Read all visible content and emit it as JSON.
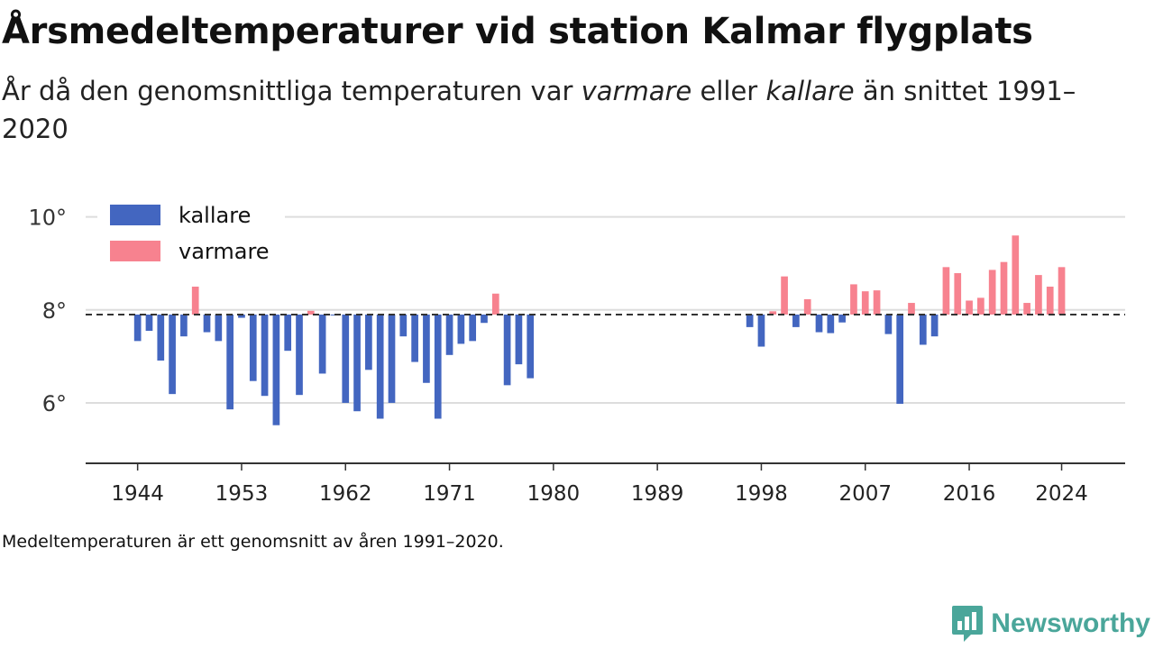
{
  "title": "Årsmedeltemperaturer vid station Kalmar flygplats",
  "subtitle": {
    "part1": "År då den genomsnittliga temperaturen var ",
    "emph1": "varmare",
    "part2": " eller ",
    "emph2": "kallare",
    "part3": " än snittet 1991–2020"
  },
  "footnote": "Medeltemperaturen är ett genomsnitt av åren 1991–2020.",
  "brand": {
    "name": "Newsworthy",
    "icon": "newsworthy-logo-icon",
    "color": "#4aa69a"
  },
  "colors": {
    "cold": "#4366c0",
    "warm": "#f7828f",
    "baseline": "#333333",
    "grid": "#dddddd",
    "axis": "#333333"
  },
  "chart_data": {
    "type": "bar",
    "title": "Årsmedeltemperaturer vid station Kalmar flygplats",
    "baseline": 7.9,
    "ylim": [
      4.7,
      10.4
    ],
    "yticks": [
      {
        "value": 6,
        "label": "6°"
      },
      {
        "value": 8,
        "label": "8°"
      },
      {
        "value": 10,
        "label": "10°"
      }
    ],
    "xlim": [
      1939.5,
      2029.5
    ],
    "xticks": [
      1944,
      1953,
      1962,
      1971,
      1980,
      1989,
      1998,
      2007,
      2016,
      2024
    ],
    "grid": true,
    "legend": {
      "position": "top-left",
      "entries": [
        {
          "key": "cold",
          "label": "kallare"
        },
        {
          "key": "warm",
          "label": "varmare"
        }
      ]
    },
    "series": [
      {
        "years": [
          1944,
          1945,
          1946,
          1947,
          1948,
          1949,
          1950,
          1951,
          1952,
          1953,
          1954,
          1955,
          1956,
          1957,
          1958,
          1959,
          1960,
          1961,
          1962,
          1963,
          1964,
          1965,
          1966,
          1967,
          1968,
          1969,
          1970,
          1971,
          1972,
          1973,
          1974,
          1975,
          1976,
          1977,
          1978
        ],
        "values": [
          7.33,
          7.55,
          6.91,
          6.19,
          7.43,
          8.5,
          7.52,
          7.33,
          5.86,
          7.83,
          6.47,
          6.15,
          5.52,
          7.12,
          6.17,
          7.98,
          6.63,
          7.89,
          6.0,
          5.82,
          6.71,
          5.66,
          6.0,
          7.43,
          6.88,
          6.43,
          5.66,
          7.03,
          7.27,
          7.33,
          7.72,
          8.35,
          6.38,
          6.83,
          6.53
        ]
      },
      {
        "years": [
          1997,
          1998,
          1999,
          2000,
          2001,
          2002,
          2003,
          2004,
          2005,
          2006,
          2007,
          2008,
          2009,
          2010,
          2011,
          2012,
          2013,
          2014,
          2015,
          2016,
          2017,
          2018,
          2019,
          2020,
          2021,
          2022,
          2023,
          2024
        ],
        "values": [
          7.63,
          7.21,
          7.97,
          8.72,
          7.63,
          8.23,
          7.52,
          7.5,
          7.73,
          8.55,
          8.4,
          8.42,
          7.48,
          5.98,
          8.15,
          7.25,
          7.43,
          8.92,
          8.79,
          8.2,
          8.26,
          8.86,
          9.03,
          9.6,
          8.15,
          8.75,
          8.5,
          8.92
        ]
      }
    ]
  }
}
